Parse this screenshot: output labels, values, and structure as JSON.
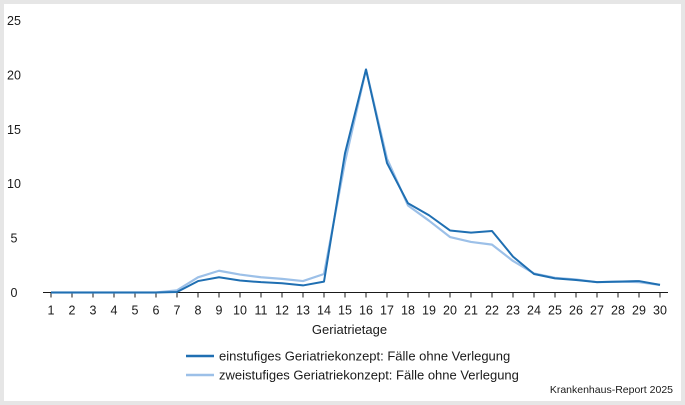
{
  "chart_data": {
    "type": "line",
    "xlabel": "Geriatrietage",
    "ylabel": "",
    "ylim": [
      0,
      25
    ],
    "yticks": [
      0,
      5,
      10,
      15,
      20,
      25
    ],
    "x": [
      1,
      2,
      3,
      4,
      5,
      6,
      7,
      8,
      9,
      10,
      11,
      12,
      13,
      14,
      15,
      16,
      17,
      18,
      19,
      20,
      21,
      22,
      23,
      24,
      25,
      26,
      27,
      28,
      29,
      30
    ],
    "series": [
      {
        "name": "einstufiges Geriatriekonzept: Fälle ohne Verlegung",
        "color": "#1f6fb2",
        "values": [
          0,
          0,
          0,
          0,
          0,
          0,
          0.05,
          1.05,
          1.4,
          1.1,
          0.95,
          0.85,
          0.65,
          1.0,
          12.8,
          20.5,
          11.9,
          8.2,
          7.1,
          5.7,
          5.5,
          5.65,
          3.3,
          1.7,
          1.3,
          1.15,
          0.95,
          1.0,
          1.05,
          0.7
        ]
      },
      {
        "name": "zweistufiges Geriatriekonzept: Fälle ohne Verlegung",
        "color": "#9cc0e8",
        "values": [
          0,
          0,
          0,
          0,
          0,
          0,
          0.2,
          1.4,
          2.0,
          1.65,
          1.4,
          1.25,
          1.05,
          1.7,
          12.0,
          20.5,
          12.3,
          8.0,
          6.6,
          5.1,
          4.65,
          4.4,
          2.9,
          1.75,
          1.35,
          1.2,
          0.95,
          1.0,
          0.95,
          0.7
        ]
      }
    ],
    "grid": false,
    "legend": "bottom"
  },
  "source": "Krankenhaus-Report 2025"
}
